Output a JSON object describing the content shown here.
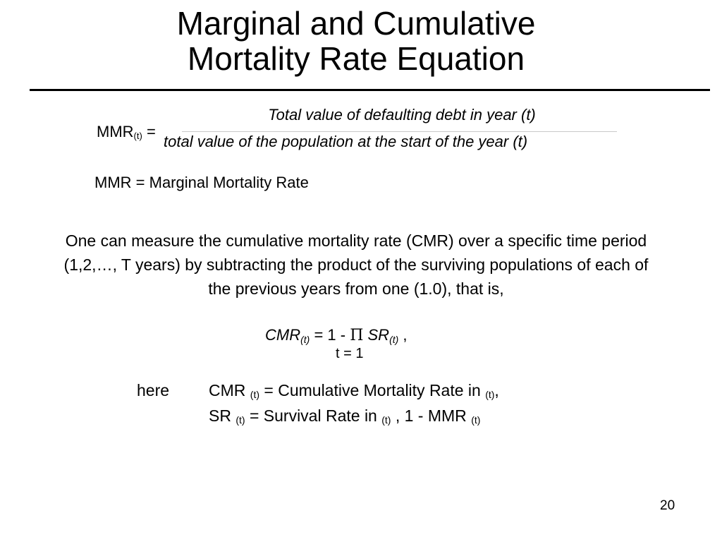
{
  "slide": {
    "title_line1": "Marginal and Cumulative",
    "title_line2": "Mortality Rate Equation",
    "page_number": "20"
  },
  "mmr_equation": {
    "lhs_symbol": "MMR",
    "lhs_subscript": "(t)",
    "equals": " =",
    "numerator": "Total value of defaulting debt in year (t)",
    "denominator": "total value of the population at the start of the year (t)"
  },
  "mmr_definition": "MMR = Marginal Mortality Rate",
  "paragraph": "One can measure the cumulative mortality rate (CMR) over a specific time period (1,2,…, T years) by subtracting the product of the surviving populations of each of the previous years from one (1.0), that is,",
  "cmr_equation": {
    "lhs": "CMR",
    "lhs_subscript": "(t)",
    "middle": " = 1 - ",
    "product_symbol": "Π",
    "sr": " SR",
    "sr_subscript": "(t)",
    "trailing": " ,",
    "lower_limit": "t = 1"
  },
  "where_block": {
    "lead": "here",
    "line1_pre": "CMR ",
    "line1_sub": "(t)",
    "line1_mid": " = Cumulative Mortality Rate in ",
    "line1_sub2": "(t)",
    "line1_post": ",",
    "line2_pre": "SR ",
    "line2_sub": "(t)",
    "line2_mid": " = Survival Rate in ",
    "line2_sub2": "(t)",
    "line2_mid2": " , 1 - MMR ",
    "line2_sub3": "(t)"
  }
}
